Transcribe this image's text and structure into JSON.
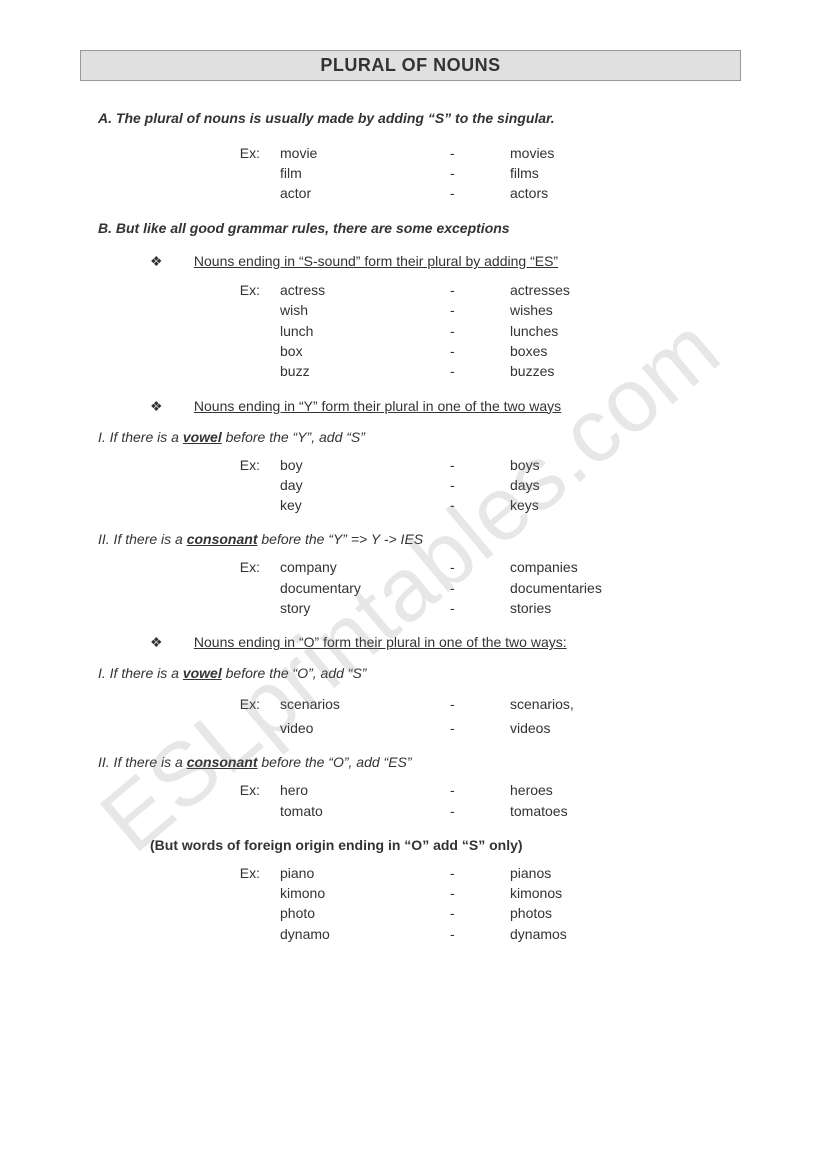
{
  "title": "PLURAL OF NOUNS",
  "watermark": "ESLprintables.com",
  "sectionA": {
    "heading": "A. The plural of nouns is usually made by adding  “S”  to the singular.",
    "exLabel": "Ex:",
    "examples": [
      {
        "s": "movie",
        "p": "movies"
      },
      {
        "s": "film",
        "p": "films"
      },
      {
        "s": "actor",
        "p": "actors"
      }
    ]
  },
  "sectionB": {
    "heading": "B. But like all good grammar rules, there are some exceptions",
    "bullet": "❖",
    "rule1": {
      "text": "Nouns ending in “S-sound” form their plural by adding “ES”",
      "exLabel": "Ex:",
      "examples": [
        {
          "s": "actress",
          "p": "actresses"
        },
        {
          "s": "wish",
          "p": "wishes"
        },
        {
          "s": "lunch",
          "p": "lunches"
        },
        {
          "s": "box",
          "p": "boxes"
        },
        {
          "s": "buzz",
          "p": "buzzes"
        }
      ]
    },
    "rule2": {
      "text": "Nouns ending in “Y” form their plural in one of the two ways",
      "caseI": {
        "pre": "I. If there is a ",
        "emph": "vowel",
        "post": " before the “Y”, add “S”",
        "exLabel": "Ex:",
        "examples": [
          {
            "s": "boy",
            "p": "boys"
          },
          {
            "s": "day",
            "p": "days"
          },
          {
            "s": "key",
            "p": "keys"
          }
        ]
      },
      "caseII": {
        "pre": "II. If there is a ",
        "emph": "consonant",
        "post": " before the “Y” => Y -> IES",
        "exLabel": "Ex:",
        "examples": [
          {
            "s": "company",
            "p": "companies"
          },
          {
            "s": "documentary",
            "p": "documentaries"
          },
          {
            "s": "story",
            "p": "stories"
          }
        ]
      }
    },
    "rule3": {
      "text": "Nouns ending in “O”  form their plural in one of the two ways:",
      "caseI": {
        "pre": "I. If there is a ",
        "emph": "vowel",
        "post": " before the “O”, add “S”",
        "exLabel": "Ex:",
        "examples": [
          {
            "s": "scenarios",
            "p": "scenarios,"
          },
          {
            "s": "video",
            "p": "videos"
          }
        ]
      },
      "caseII": {
        "pre": "II. If there is a ",
        "emph": "consonant",
        "post": " before the “O”, add “ES”",
        "exLabel": "Ex:",
        "examples": [
          {
            "s": "hero",
            "p": "heroes"
          },
          {
            "s": "tomato",
            "p": "tomatoes"
          }
        ]
      },
      "note": "(But words of foreign origin ending in “O” add “S” only)",
      "noteEx": {
        "exLabel": "Ex:",
        "examples": [
          {
            "s": "piano",
            "p": "pianos"
          },
          {
            "s": "kimono",
            "p": "kimonos"
          },
          {
            "s": "photo",
            "p": "photos"
          },
          {
            "s": "dynamo",
            "p": "dynamos"
          }
        ]
      }
    }
  }
}
